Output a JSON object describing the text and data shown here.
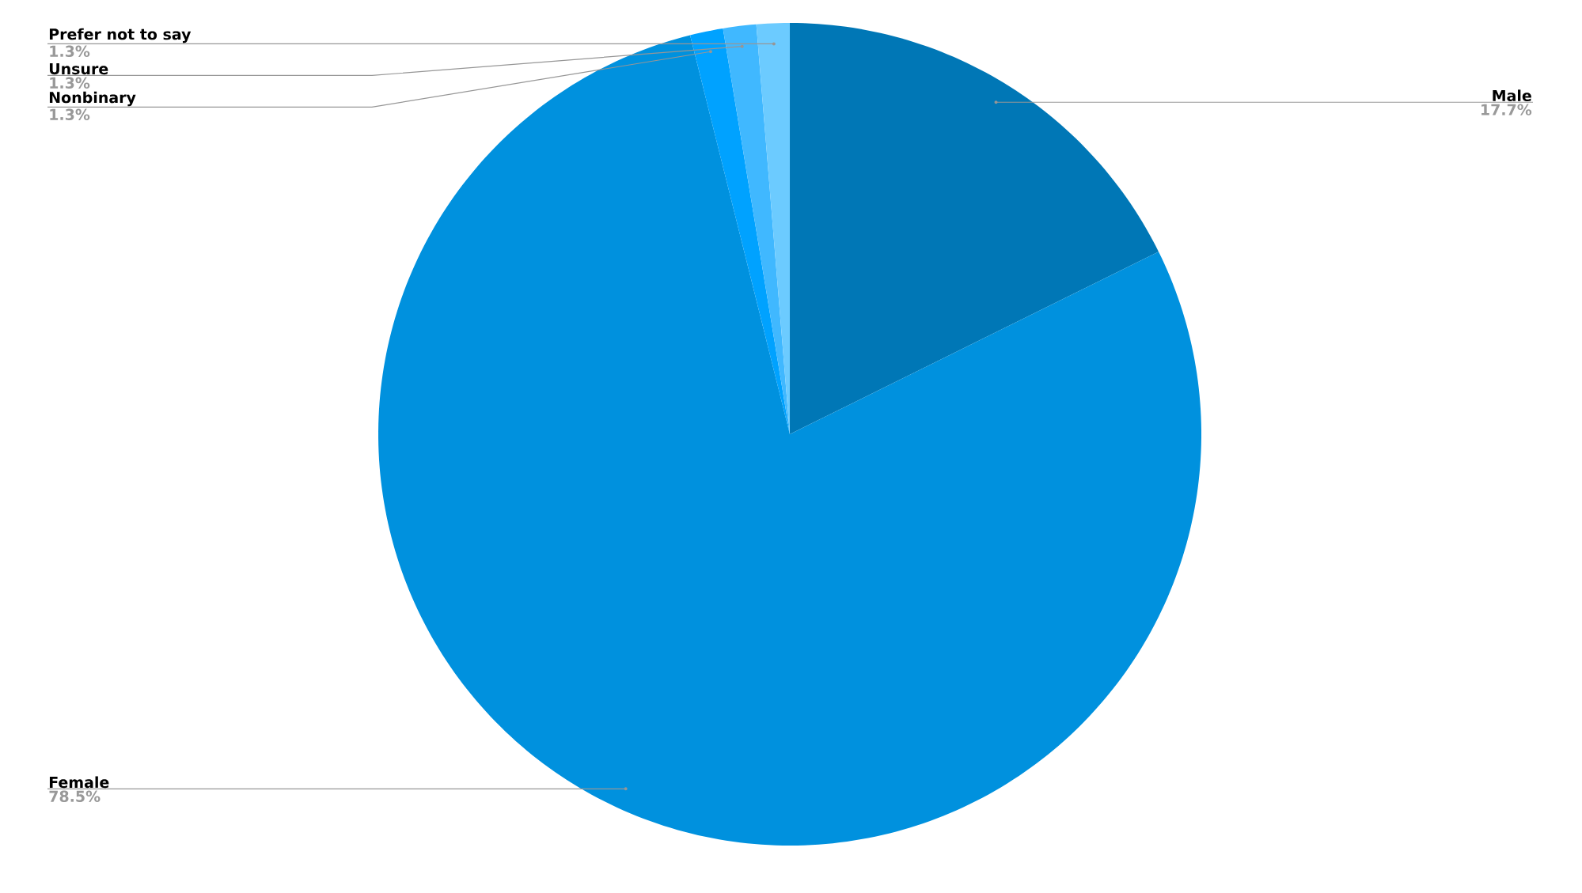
{
  "chart_data": {
    "type": "pie",
    "categories": [
      "Male",
      "Female",
      "Nonbinary",
      "Unsure",
      "Prefer not to say"
    ],
    "values": [
      17.7,
      78.5,
      1.3,
      1.3,
      1.3
    ],
    "value_labels": [
      "17.7%",
      "78.5%",
      "1.3%",
      "1.3%",
      "1.3%"
    ],
    "colors": [
      "#0077b6",
      "#0091de",
      "#00a2ff",
      "#40b8ff",
      "#6ccbff"
    ]
  }
}
